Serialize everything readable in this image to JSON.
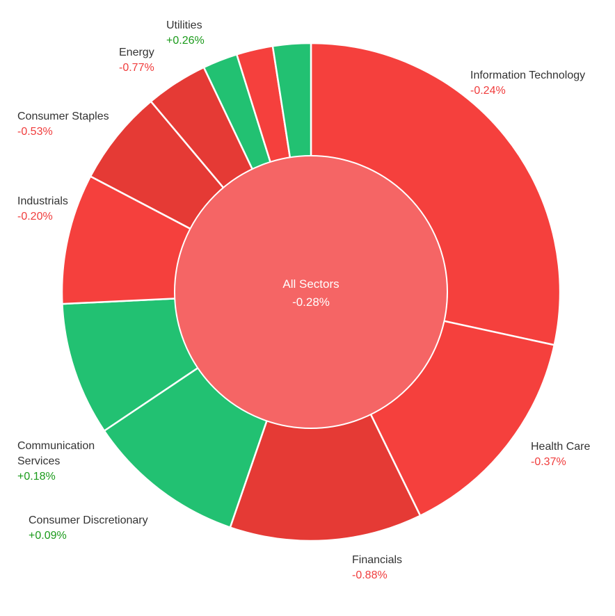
{
  "chart_data": {
    "type": "pie",
    "center": {
      "label": "All Sectors",
      "value": "-0.28%",
      "color": "#f56565"
    },
    "segments": [
      {
        "name": "Information Technology",
        "change": "-0.24%",
        "weight": 28.9,
        "color": "#f5403d"
      },
      {
        "name": "Health Care",
        "change": "-0.37%",
        "weight": 14.6,
        "color": "#f5403d"
      },
      {
        "name": "Financials",
        "change": "-0.88%",
        "weight": 12.7,
        "color": "#e53a35"
      },
      {
        "name": "Consumer Discretionary",
        "change": "+0.09%",
        "weight": 10.5,
        "color": "#22c172"
      },
      {
        "name": "Communication Services",
        "change": "+0.18%",
        "weight": 8.8,
        "color": "#22c172"
      },
      {
        "name": "Industrials",
        "change": "-0.20%",
        "weight": 8.6,
        "color": "#f5403d"
      },
      {
        "name": "Consumer Staples",
        "change": "-0.53%",
        "weight": 6.3,
        "color": "#e53a35"
      },
      {
        "name": "Energy",
        "change": "-0.77%",
        "weight": 4.1,
        "color": "#e53a35"
      },
      {
        "name": "",
        "change": "",
        "weight": 2.3,
        "color": "#22c172"
      },
      {
        "name": "",
        "change": "",
        "weight": 2.4,
        "color": "#f5403d"
      },
      {
        "name": "Utilities",
        "change": "+0.26%",
        "weight": 2.5,
        "color": "#22c172"
      }
    ]
  }
}
